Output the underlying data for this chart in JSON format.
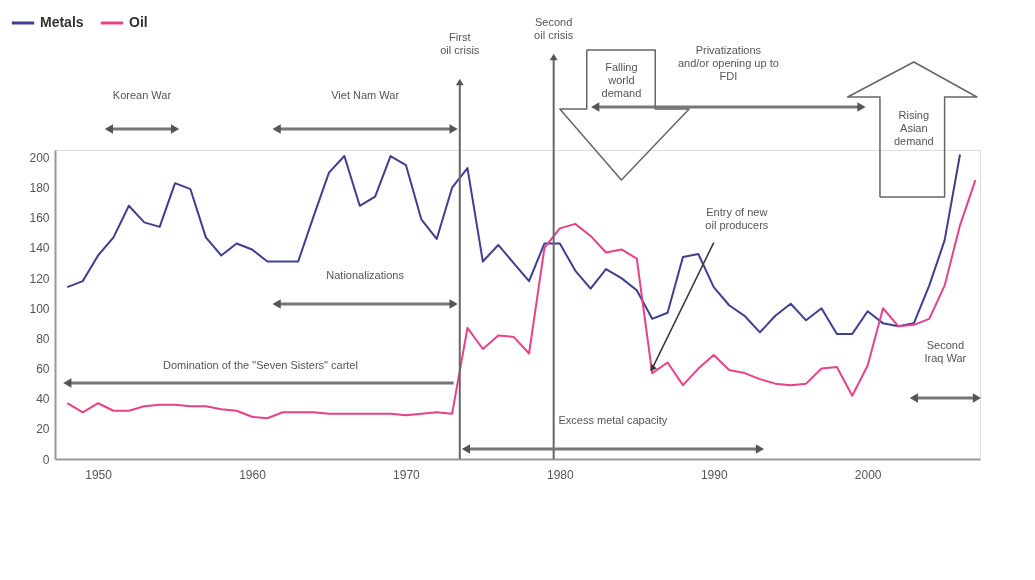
{
  "chart_data": {
    "type": "line",
    "x": [
      1948,
      1949,
      1950,
      1951,
      1952,
      1953,
      1954,
      1955,
      1956,
      1957,
      1958,
      1959,
      1960,
      1961,
      1962,
      1963,
      1964,
      1965,
      1966,
      1967,
      1968,
      1969,
      1970,
      1971,
      1972,
      1973,
      1974,
      1975,
      1976,
      1977,
      1978,
      1979,
      1980,
      1981,
      1982,
      1983,
      1984,
      1985,
      1986,
      1987,
      1988,
      1989,
      1990,
      1991,
      1992,
      1993,
      1994,
      1995,
      1996,
      1997,
      1998,
      1999,
      2000,
      2001,
      2002,
      2003,
      2004,
      2005,
      2006,
      2007
    ],
    "series": [
      {
        "name": "Metals",
        "color": "#3f3f8f",
        "values": [
          114,
          118,
          135,
          147,
          168,
          157,
          154,
          183,
          179,
          147,
          135,
          143,
          139,
          131,
          131,
          131,
          161,
          190,
          201,
          168,
          174,
          201,
          195,
          159,
          146,
          180,
          193,
          131,
          142,
          130,
          118,
          143,
          143,
          125,
          113,
          126,
          120,
          112,
          93,
          97,
          134,
          136,
          114,
          102,
          95,
          84,
          95,
          103,
          92,
          100,
          83,
          83,
          98,
          90,
          88,
          90,
          115,
          145,
          202,
          null
        ]
      },
      {
        "name": "Oil",
        "color": "#e8418a",
        "values": [
          37,
          31,
          37,
          32,
          32,
          35,
          36,
          36,
          35,
          35,
          33,
          32,
          28,
          27,
          31,
          31,
          31,
          30,
          30,
          30,
          30,
          30,
          29,
          30,
          31,
          30,
          87,
          73,
          82,
          81,
          70,
          140,
          153,
          156,
          148,
          137,
          139,
          133,
          57,
          64,
          49,
          60,
          69,
          59,
          57,
          53,
          50,
          49,
          50,
          60,
          61,
          42,
          62,
          100,
          88,
          89,
          93,
          115,
          155,
          185
        ]
      }
    ],
    "xlim": [
      1947.2,
      2007.3
    ],
    "xticks": [
      1950,
      1960,
      1970,
      1980,
      1990,
      2000
    ],
    "ylim": [
      0,
      205
    ],
    "yticks": [
      0,
      20,
      40,
      60,
      80,
      100,
      120,
      140,
      160,
      180,
      200
    ],
    "grid": false,
    "legend": "top left",
    "marker": "none",
    "line_style": "solid",
    "ref_lines": [
      {
        "axis": "x",
        "value": 1973.5,
        "label": "First\noil crisis"
      },
      {
        "axis": "x",
        "value": 1979.6,
        "label": "Second\noil crisis"
      }
    ],
    "annotations": [
      "Korean War",
      "Viet Nam War",
      "Nationalizations",
      "Domination of the \"Seven Sisters\" cartel",
      "Excess metal capacity",
      "Privatizations\nand/or opening up to\nFDI",
      "Second\nIraq War",
      "Falling\nworld\ndemand",
      "Rising\nAsian\ndemand",
      {
        "text": "Entry of new\noil producers",
        "x": 1986,
        "y": 60
      }
    ]
  }
}
